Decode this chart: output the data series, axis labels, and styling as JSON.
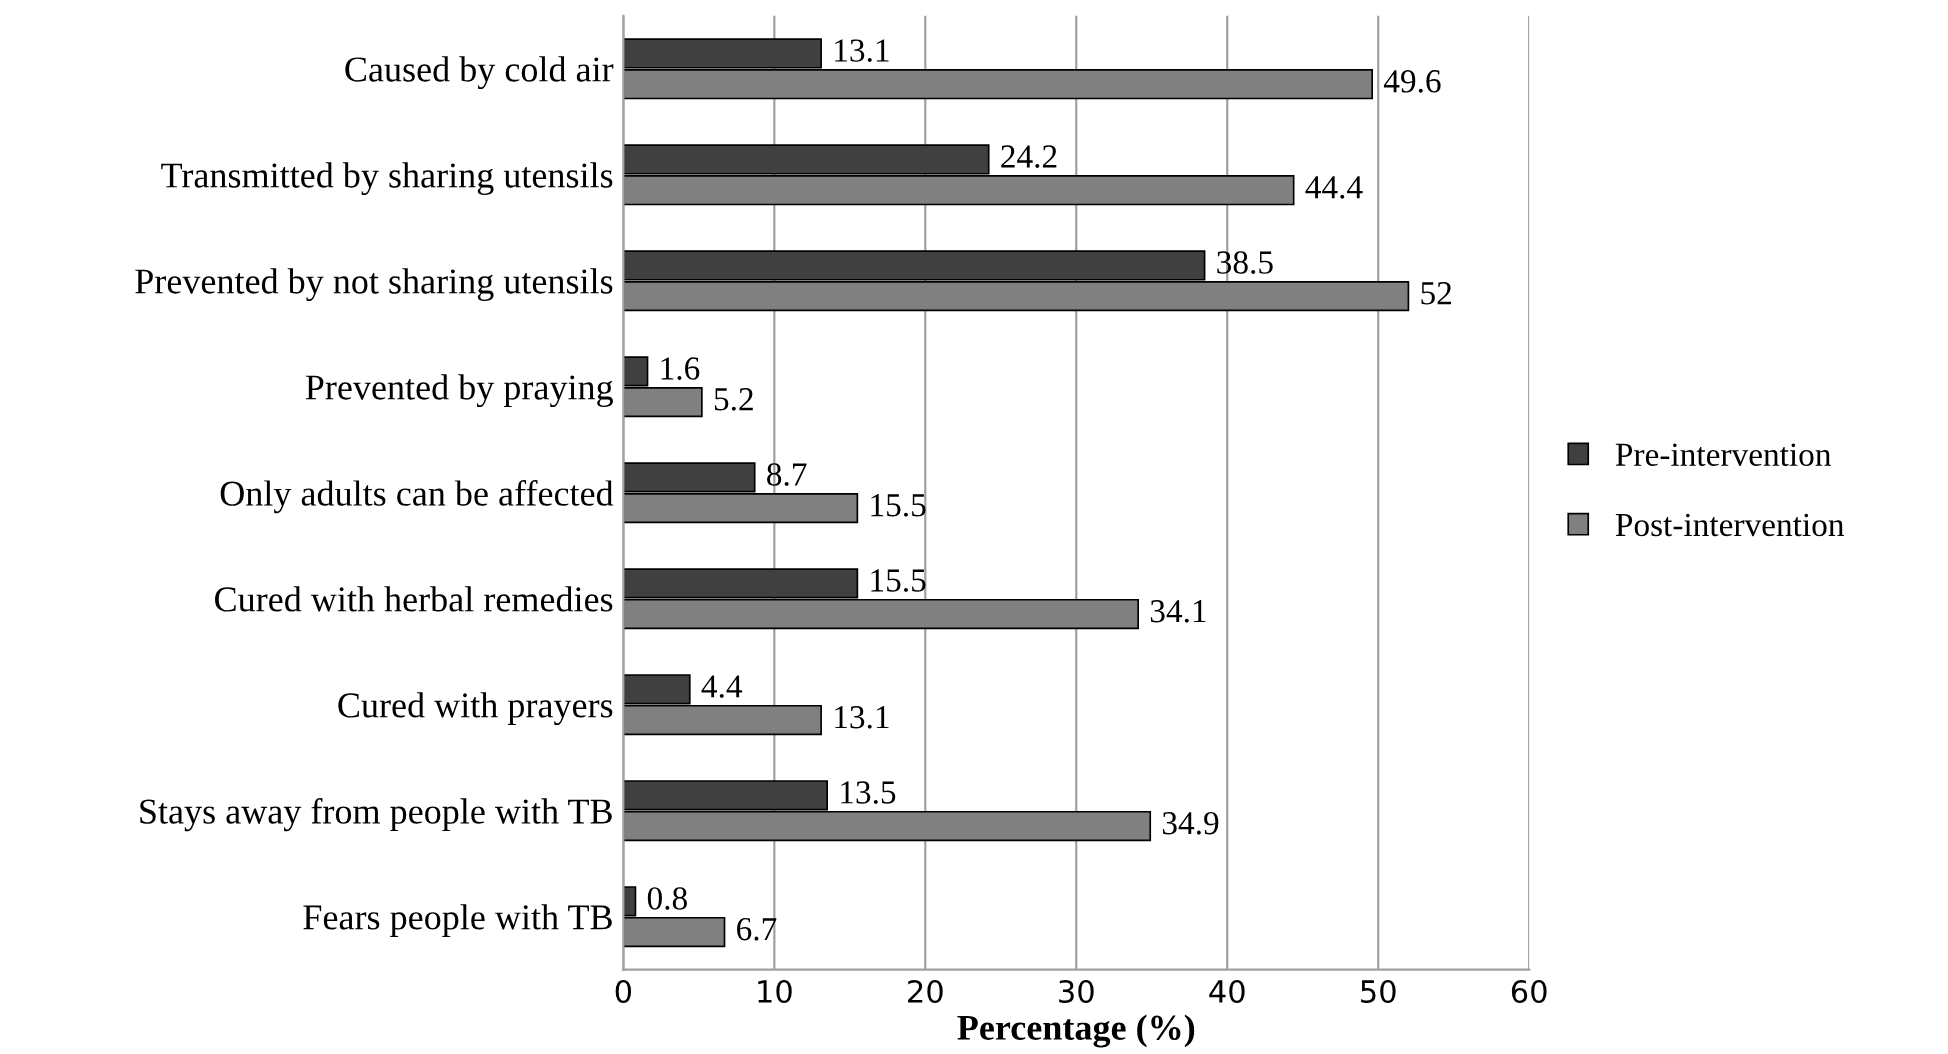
{
  "chart_data": {
    "type": "bar",
    "orientation": "horizontal",
    "xlabel": "Percentage (%)",
    "categories": [
      "Caused by cold air",
      "Transmitted by sharing utensils",
      "Prevented by not sharing utensils",
      "Prevented by praying",
      "Only adults can be affected",
      "Cured with herbal remedies",
      "Cured with prayers",
      "Stays away from people with TB",
      "Fears people with TB"
    ],
    "series": [
      {
        "name": "Pre-intervention",
        "color": "#404040",
        "values": [
          13.1,
          24.2,
          38.5,
          1.6,
          8.7,
          15.5,
          4.4,
          13.5,
          0.8
        ]
      },
      {
        "name": "Post-intervention",
        "color": "#808080",
        "values": [
          49.6,
          44.4,
          52,
          5.2,
          15.5,
          34.1,
          13.1,
          34.9,
          6.7
        ]
      }
    ],
    "xlim": [
      0,
      60
    ],
    "xticks": [
      0,
      10,
      20,
      30,
      40,
      50,
      60
    ],
    "grid": "x",
    "legend": "right",
    "data_labels": true
  }
}
